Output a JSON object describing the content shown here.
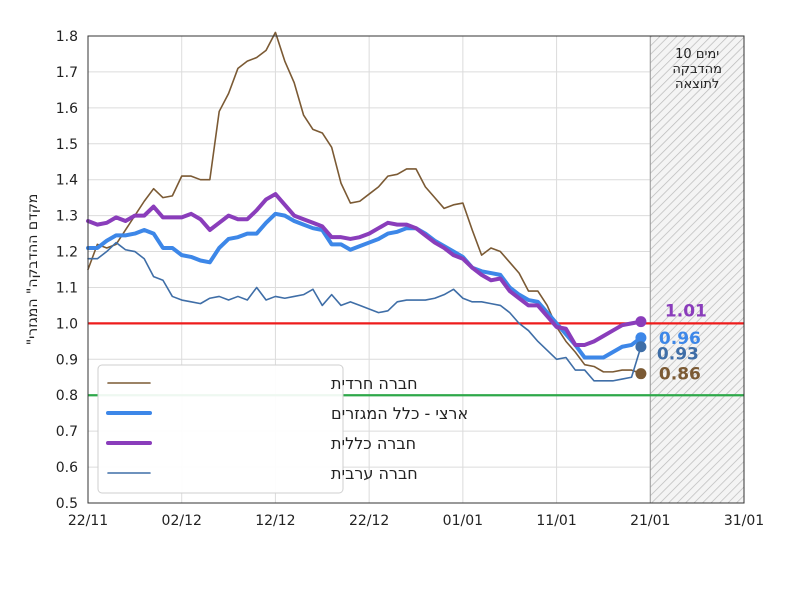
{
  "chart_data": {
    "type": "line",
    "ylabel": "\"מקדם ההדבקה\" המגזרי",
    "ylim": [
      0.5,
      1.8
    ],
    "yticks": [
      "0.5",
      "0.6",
      "0.7",
      "0.8",
      "0.9",
      "1.0",
      "1.1",
      "1.2",
      "1.3",
      "1.4",
      "1.5",
      "1.6",
      "1.7",
      "1.8"
    ],
    "xticks": [
      {
        "label": "22/11",
        "day": 0
      },
      {
        "label": "02/12",
        "day": 10
      },
      {
        "label": "12/12",
        "day": 20
      },
      {
        "label": "22/12",
        "day": 30
      },
      {
        "label": "01/01",
        "day": 40
      },
      {
        "label": "11/01",
        "day": 50
      },
      {
        "label": "21/01",
        "day": 60
      },
      {
        "label": "31/01",
        "day": 70
      }
    ],
    "xlim": [
      0,
      70
    ],
    "shaded_region": {
      "from_day": 60,
      "to_day": 70,
      "text_lines": [
        "10 ימים",
        "מהדבקה",
        "לתוצאה"
      ]
    },
    "reference_lines": [
      {
        "y": 1.0,
        "color": "#ee1c1c"
      },
      {
        "y": 0.8,
        "color": "#2ea84a"
      }
    ],
    "legend_position": "bottom-left",
    "series": [
      {
        "name": "חברה חרדית",
        "color": "#7b5a34",
        "width": 1.6,
        "end_label": "0.86",
        "values": [
          1.15,
          1.22,
          1.21,
          1.22,
          1.26,
          1.3,
          1.34,
          1.375,
          1.35,
          1.355,
          1.41,
          1.41,
          1.4,
          1.4,
          1.59,
          1.64,
          1.71,
          1.73,
          1.74,
          1.76,
          1.81,
          1.73,
          1.67,
          1.58,
          1.54,
          1.53,
          1.49,
          1.39,
          1.335,
          1.34,
          1.36,
          1.38,
          1.41,
          1.415,
          1.43,
          1.43,
          1.38,
          1.35,
          1.32,
          1.33,
          1.335,
          1.26,
          1.19,
          1.21,
          1.2,
          1.17,
          1.14,
          1.09,
          1.09,
          1.05,
          0.99,
          0.95,
          0.92,
          0.885,
          0.88,
          0.865,
          0.865,
          0.87,
          0.87,
          0.86
        ]
      },
      {
        "name": "ארצי - כלל המגזרים",
        "color": "#3d87e8",
        "width": 4,
        "end_label": "0.96",
        "values": [
          1.21,
          1.21,
          1.23,
          1.245,
          1.245,
          1.25,
          1.26,
          1.25,
          1.21,
          1.21,
          1.19,
          1.185,
          1.175,
          1.17,
          1.21,
          1.235,
          1.24,
          1.25,
          1.25,
          1.28,
          1.305,
          1.3,
          1.285,
          1.275,
          1.265,
          1.26,
          1.22,
          1.22,
          1.205,
          1.215,
          1.225,
          1.235,
          1.25,
          1.255,
          1.265,
          1.265,
          1.25,
          1.23,
          1.215,
          1.2,
          1.185,
          1.155,
          1.145,
          1.14,
          1.135,
          1.1,
          1.08,
          1.065,
          1.06,
          1.03,
          1.0,
          0.97,
          0.94,
          0.905,
          0.905,
          0.905,
          0.92,
          0.935,
          0.94,
          0.96
        ]
      },
      {
        "name": "חברה כללית",
        "color": "#8a3dbb",
        "width": 4,
        "end_label": "1.01",
        "values": [
          1.285,
          1.275,
          1.28,
          1.295,
          1.285,
          1.3,
          1.3,
          1.325,
          1.295,
          1.295,
          1.295,
          1.305,
          1.29,
          1.26,
          1.28,
          1.3,
          1.29,
          1.29,
          1.315,
          1.345,
          1.36,
          1.33,
          1.3,
          1.29,
          1.28,
          1.27,
          1.24,
          1.24,
          1.235,
          1.24,
          1.25,
          1.265,
          1.28,
          1.275,
          1.275,
          1.265,
          1.245,
          1.225,
          1.21,
          1.19,
          1.18,
          1.155,
          1.135,
          1.12,
          1.125,
          1.09,
          1.07,
          1.05,
          1.05,
          1.02,
          0.99,
          0.985,
          0.94,
          0.94,
          0.95,
          0.965,
          0.98,
          0.995,
          1.0,
          1.005
        ]
      },
      {
        "name": "חברה ערבית",
        "color": "#3f6ea7",
        "width": 1.6,
        "end_label": "0.93",
        "values": [
          1.18,
          1.18,
          1.2,
          1.225,
          1.205,
          1.2,
          1.18,
          1.13,
          1.12,
          1.075,
          1.065,
          1.06,
          1.055,
          1.07,
          1.075,
          1.065,
          1.075,
          1.065,
          1.1,
          1.065,
          1.075,
          1.07,
          1.075,
          1.08,
          1.095,
          1.05,
          1.08,
          1.05,
          1.06,
          1.05,
          1.04,
          1.03,
          1.035,
          1.06,
          1.065,
          1.065,
          1.065,
          1.07,
          1.08,
          1.095,
          1.07,
          1.06,
          1.06,
          1.055,
          1.05,
          1.03,
          1.0,
          0.98,
          0.95,
          0.925,
          0.9,
          0.905,
          0.87,
          0.87,
          0.84,
          0.84,
          0.84,
          0.845,
          0.85,
          0.935
        ]
      }
    ]
  }
}
